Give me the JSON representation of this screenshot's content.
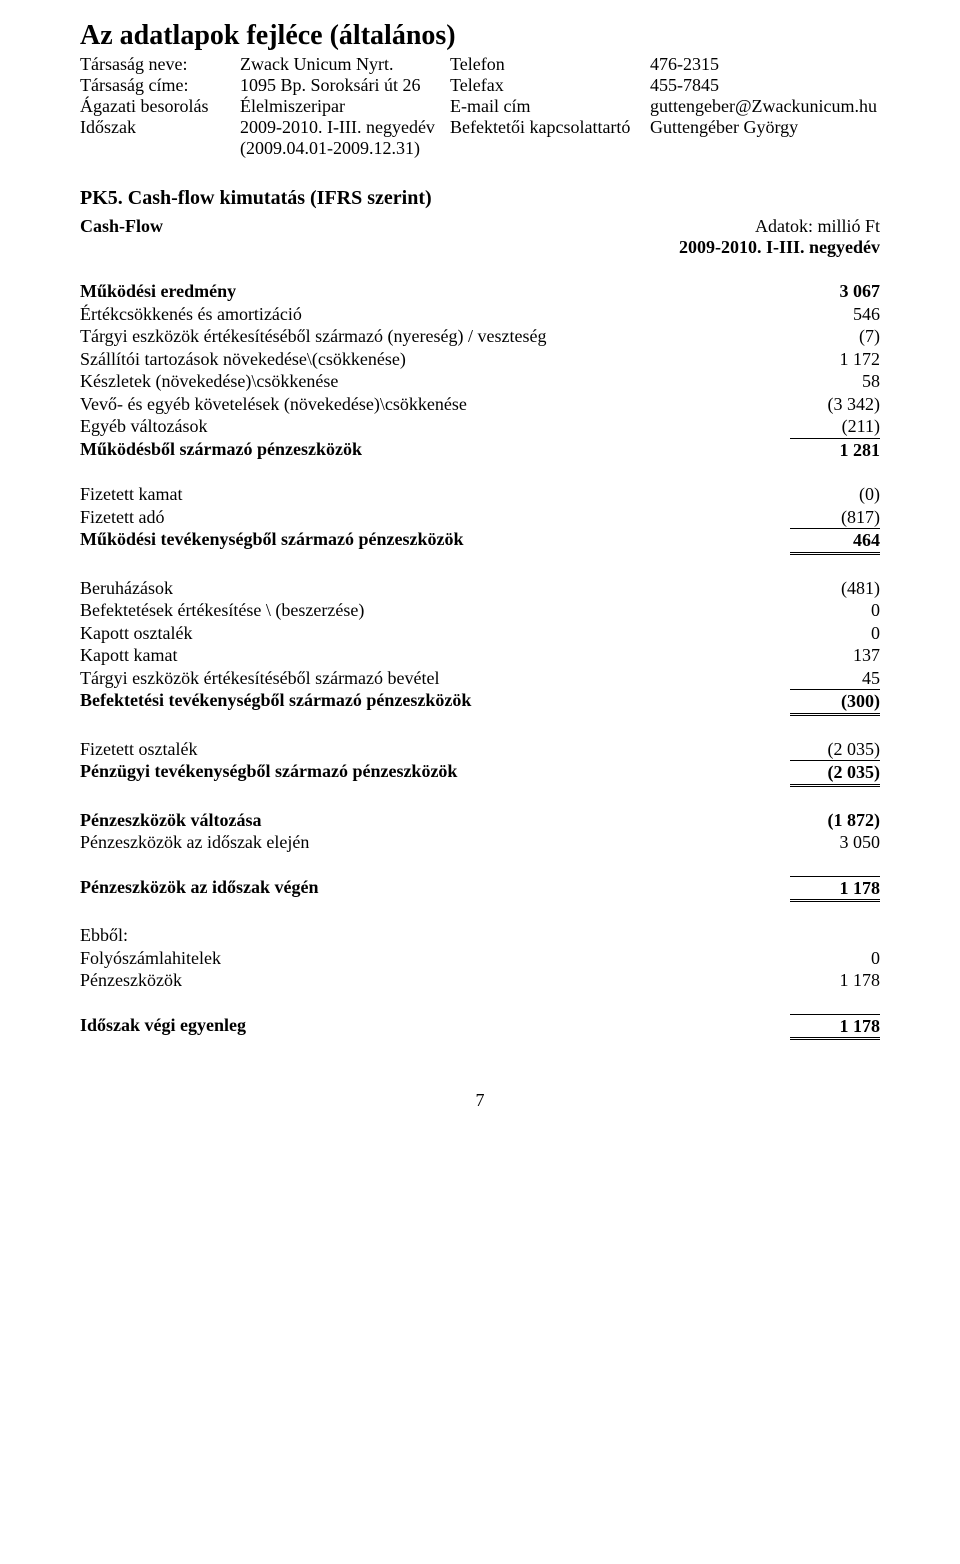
{
  "header": {
    "title": "Az adatlapok fejléce (általános)",
    "rows": [
      {
        "l1": "Társaság neve:",
        "l2": "Zwack Unicum Nyrt.",
        "r1": "Telefon",
        "r2": "476-2315"
      },
      {
        "l1": "Társaság címe:",
        "l2": "1095 Bp. Soroksári út 26",
        "r1": "Telefax",
        "r2": "455-7845"
      },
      {
        "l1": "Ágazati besorolás",
        "l2": "Élelmiszeripar",
        "r1": "E-mail cím",
        "r2": "guttengeber@Zwackunicum.hu"
      },
      {
        "l1": "Időszak",
        "l2": "2009-2010. I-III. negyedév",
        "r1": "Befektetői kapcsolattartó",
        "r2": "Guttengéber György"
      },
      {
        "l1": "",
        "l2": "(2009.04.01-2009.12.31)",
        "r1": "",
        "r2": ""
      }
    ]
  },
  "section": {
    "title": "PK5. Cash-flow kimutatás (IFRS szerint)",
    "left": "Cash-Flow",
    "unit": "Adatok: millió Ft",
    "period": "2009-2010. I-III. negyedév"
  },
  "blocks": [
    [
      {
        "label": "Működési eredmény",
        "value": "3 067",
        "bold": true
      },
      {
        "label": "Értékcsökkenés és amortizáció",
        "value": "546"
      },
      {
        "label": "Tárgyi eszközök értékesítéséből származó (nyereség) / veszteség",
        "value": "(7)"
      },
      {
        "label": "Szállítói tartozások növekedése\\(csökkenése)",
        "value": "1 172"
      },
      {
        "label": "Készletek (növekedése)\\csökkenése",
        "value": "58"
      },
      {
        "label": "Vevő- és egyéb követelések (növekedése)\\csökkenése",
        "value": "(3 342)"
      },
      {
        "label": "Egyéb változások",
        "value": "(211)"
      },
      {
        "label": "Működésből származó pénzeszközök",
        "value": "1 281",
        "bold": true,
        "ruleTop": true
      }
    ],
    [
      {
        "label": "Fizetett kamat",
        "value": "(0)"
      },
      {
        "label": "Fizetett adó",
        "value": "(817)"
      },
      {
        "label": "Működési tevékenységből származó pénzeszközök",
        "value": "464",
        "bold": true,
        "ruleTop": true,
        "ruleDouble": true
      }
    ],
    [
      {
        "label": "Beruházások",
        "value": "(481)"
      },
      {
        "label": "Befektetések értékesítése \\ (beszerzése)",
        "value": "0"
      },
      {
        "label": "Kapott osztalék",
        "value": "0"
      },
      {
        "label": "Kapott kamat",
        "value": "137"
      },
      {
        "label": "Tárgyi eszközök értékesítéséből származó bevétel",
        "value": "45"
      },
      {
        "label": "Befektetési tevékenységből származó pénzeszközök",
        "value": "(300)",
        "bold": true,
        "ruleTop": true,
        "ruleDouble": true
      }
    ],
    [
      {
        "label": "Fizetett osztalék",
        "value": "(2 035)"
      },
      {
        "label": "Pénzügyi tevékenységből származó pénzeszközök",
        "value": "(2 035)",
        "bold": true,
        "ruleTop": true,
        "ruleDouble": true
      }
    ],
    [
      {
        "label": "Pénzeszközök változása",
        "value": "(1 872)",
        "bold": true
      },
      {
        "label": "Pénzeszközök az időszak elején",
        "value": "3 050"
      }
    ],
    [
      {
        "label": "Pénzeszközök az időszak végén",
        "value": "1 178",
        "bold": true,
        "ruleTop": true,
        "ruleDouble": true
      }
    ],
    [
      {
        "label": "Ebből:",
        "value": ""
      },
      {
        "label": "Folyószámlahitelek",
        "value": "0"
      },
      {
        "label": "Pénzeszközök",
        "value": "1 178"
      }
    ],
    [
      {
        "label": "Időszak végi egyenleg",
        "value": "1 178",
        "bold": true,
        "ruleTop": true,
        "ruleDouble": true
      }
    ]
  ],
  "footer": {
    "page": "7"
  }
}
